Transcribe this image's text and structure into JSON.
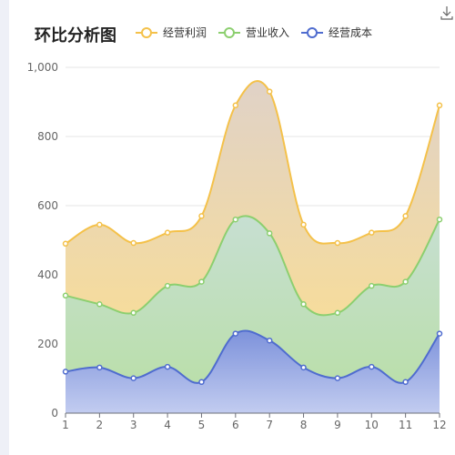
{
  "title": "环比分析图",
  "download_icon": "download-icon",
  "colors": {
    "profit": "#f4c14a",
    "revenue": "#8ccf6f",
    "cost": "#4f6ccf"
  },
  "chart_data": {
    "type": "area",
    "title": "环比分析图",
    "x": [
      "1",
      "2",
      "3",
      "4",
      "5",
      "6",
      "7",
      "8",
      "9",
      "10",
      "11",
      "12"
    ],
    "ylim": [
      0,
      1000
    ],
    "yticks": [
      "0",
      "200",
      "400",
      "600",
      "800",
      "1,000"
    ],
    "grid": true,
    "legend_position": "top",
    "series": [
      {
        "name": "经营利润",
        "color": "#f4c14a",
        "values": [
          490,
          545,
          492,
          522,
          570,
          890,
          930,
          545,
          492,
          522,
          570,
          890
        ]
      },
      {
        "name": "营业收入",
        "color": "#8ccf6f",
        "values": [
          340,
          315,
          290,
          368,
          380,
          560,
          520,
          315,
          290,
          368,
          380,
          560
        ]
      },
      {
        "name": "经营成本",
        "color": "#4f6ccf",
        "values": [
          120,
          132,
          101,
          134,
          90,
          230,
          210,
          132,
          101,
          134,
          90,
          230
        ]
      }
    ]
  }
}
